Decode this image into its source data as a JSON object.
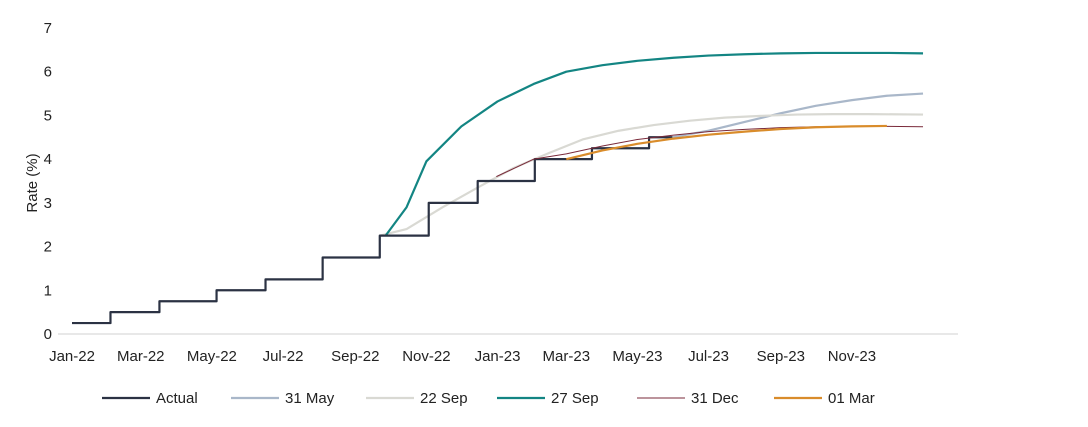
{
  "chart_data": {
    "type": "line",
    "ylabel": "Rate (%)",
    "ylim": [
      0,
      7
    ],
    "yticks": [
      "0",
      "1",
      "2",
      "3",
      "4",
      "5",
      "6",
      "7"
    ],
    "xlim": [
      "2022-01-01",
      "2024-01-31"
    ],
    "xticks": [
      {
        "date": "2022-01-01",
        "label": "Jan-22"
      },
      {
        "date": "2022-03-01",
        "label": "Mar-22"
      },
      {
        "date": "2022-05-01",
        "label": "May-22"
      },
      {
        "date": "2022-07-01",
        "label": "Jul-22"
      },
      {
        "date": "2022-09-01",
        "label": "Sep-22"
      },
      {
        "date": "2022-11-01",
        "label": "Nov-22"
      },
      {
        "date": "2023-01-01",
        "label": "Jan-23"
      },
      {
        "date": "2023-03-01",
        "label": "Mar-23"
      },
      {
        "date": "2023-05-01",
        "label": "May-23"
      },
      {
        "date": "2023-07-01",
        "label": "Jul-23"
      },
      {
        "date": "2023-09-01",
        "label": "Sep-23"
      },
      {
        "date": "2023-11-01",
        "label": "Nov-23"
      }
    ],
    "grid": false,
    "legend_position": "bottom",
    "series": [
      {
        "name": "Actual",
        "color": "#2b3243",
        "step": true,
        "points": [
          [
            "2022-01-01",
            0.25
          ],
          [
            "2022-02-03",
            0.5
          ],
          [
            "2022-03-17",
            0.75
          ],
          [
            "2022-05-05",
            1.0
          ],
          [
            "2022-06-16",
            1.25
          ],
          [
            "2022-08-04",
            1.75
          ],
          [
            "2022-09-22",
            2.25
          ],
          [
            "2022-11-03",
            3.0
          ],
          [
            "2022-12-15",
            3.5
          ],
          [
            "2023-02-02",
            4.0
          ],
          [
            "2023-03-23",
            4.25
          ],
          [
            "2023-05-11",
            4.5
          ],
          [
            "2023-05-31",
            4.5
          ]
        ]
      },
      {
        "name": "31 May",
        "color": "#a9b7c9",
        "points": [
          [
            "2023-05-31",
            4.5
          ],
          [
            "2023-07-01",
            4.65
          ],
          [
            "2023-08-01",
            4.85
          ],
          [
            "2023-09-01",
            5.05
          ],
          [
            "2023-10-01",
            5.22
          ],
          [
            "2023-11-01",
            5.35
          ],
          [
            "2023-12-01",
            5.45
          ],
          [
            "2024-01-01",
            5.5
          ]
        ]
      },
      {
        "name": "22 Sep",
        "color": "#d9d9d3",
        "points": [
          [
            "2022-09-22",
            2.25
          ],
          [
            "2022-10-15",
            2.4
          ],
          [
            "2022-11-15",
            2.9
          ],
          [
            "2022-12-15",
            3.35
          ],
          [
            "2023-01-15",
            3.8
          ],
          [
            "2023-02-15",
            4.15
          ],
          [
            "2023-03-15",
            4.45
          ],
          [
            "2023-04-15",
            4.65
          ],
          [
            "2023-05-15",
            4.78
          ],
          [
            "2023-06-15",
            4.88
          ],
          [
            "2023-07-15",
            4.95
          ],
          [
            "2023-08-15",
            4.99
          ],
          [
            "2023-09-15",
            5.02
          ],
          [
            "2023-10-15",
            5.03
          ],
          [
            "2023-11-15",
            5.03
          ],
          [
            "2024-01-01",
            5.02
          ]
        ]
      },
      {
        "name": "27 Sep",
        "color": "#138583",
        "points": [
          [
            "2022-09-27",
            2.25
          ],
          [
            "2022-10-15",
            2.9
          ],
          [
            "2022-11-01",
            3.95
          ],
          [
            "2022-12-01",
            4.75
          ],
          [
            "2023-01-01",
            5.32
          ],
          [
            "2023-02-01",
            5.72
          ],
          [
            "2023-03-01",
            6.0
          ],
          [
            "2023-04-01",
            6.15
          ],
          [
            "2023-05-01",
            6.25
          ],
          [
            "2023-06-01",
            6.32
          ],
          [
            "2023-07-01",
            6.37
          ],
          [
            "2023-08-01",
            6.4
          ],
          [
            "2023-09-01",
            6.42
          ],
          [
            "2023-10-01",
            6.43
          ],
          [
            "2023-11-01",
            6.43
          ],
          [
            "2023-12-01",
            6.43
          ],
          [
            "2024-01-01",
            6.42
          ]
        ]
      },
      {
        "name": "31 Dec",
        "color": "#7a2a3a",
        "thin": true,
        "points": [
          [
            "2022-12-31",
            3.6
          ],
          [
            "2023-02-01",
            4.0
          ],
          [
            "2023-03-01",
            4.12
          ],
          [
            "2023-04-01",
            4.3
          ],
          [
            "2023-05-01",
            4.45
          ],
          [
            "2023-06-01",
            4.55
          ],
          [
            "2023-07-01",
            4.63
          ],
          [
            "2023-08-01",
            4.68
          ],
          [
            "2023-09-01",
            4.72
          ],
          [
            "2023-10-01",
            4.74
          ],
          [
            "2023-11-01",
            4.75
          ],
          [
            "2023-12-01",
            4.75
          ],
          [
            "2024-01-01",
            4.74
          ]
        ]
      },
      {
        "name": "01 Mar",
        "color": "#d98c2b",
        "points": [
          [
            "2023-03-01",
            4.0
          ],
          [
            "2023-04-01",
            4.2
          ],
          [
            "2023-05-01",
            4.35
          ],
          [
            "2023-06-01",
            4.47
          ],
          [
            "2023-07-01",
            4.56
          ],
          [
            "2023-08-01",
            4.63
          ],
          [
            "2023-09-01",
            4.69
          ],
          [
            "2023-10-01",
            4.73
          ],
          [
            "2023-11-01",
            4.75
          ],
          [
            "2023-12-01",
            4.76
          ]
        ]
      }
    ]
  }
}
